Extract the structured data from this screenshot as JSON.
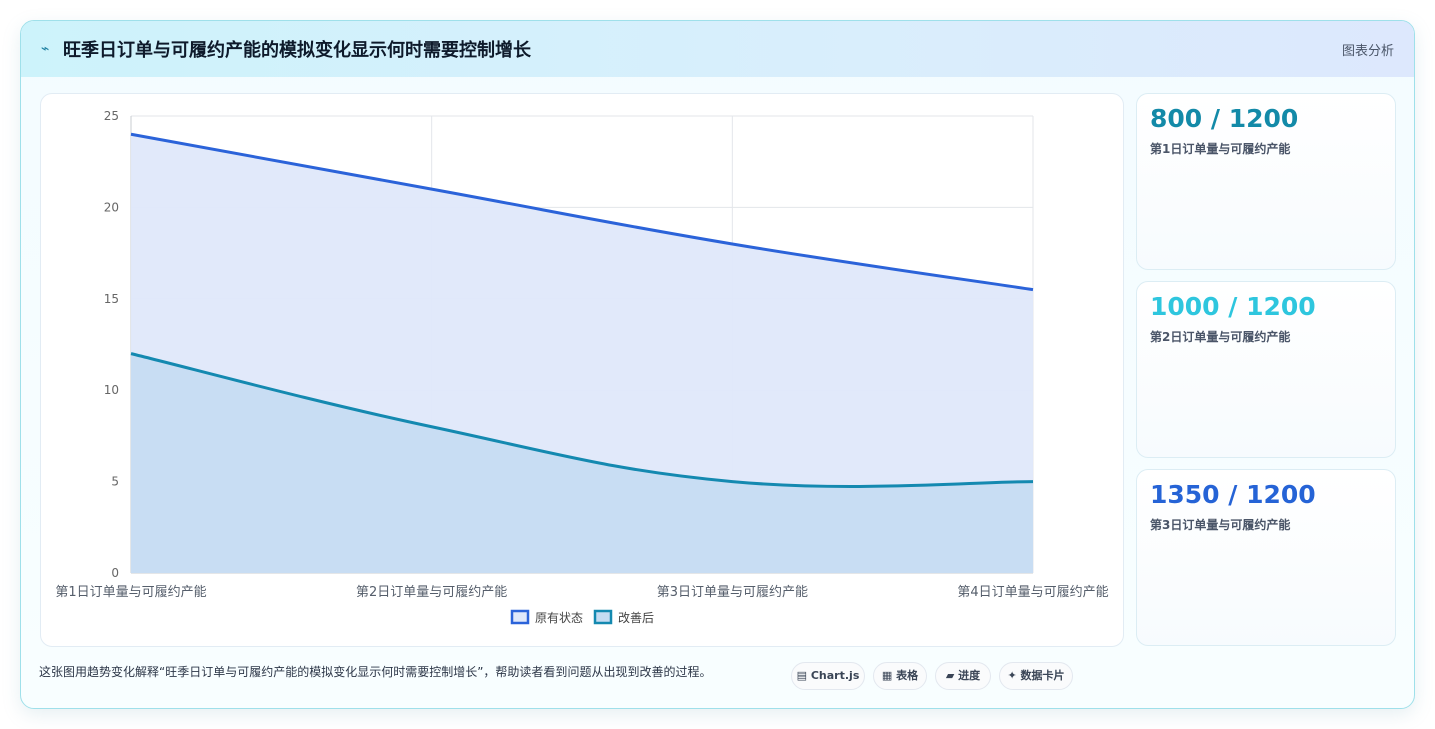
{
  "header": {
    "icon": "⌁",
    "title": "旺季日订单与可履约产能的模拟变化显示何时需要控制增长",
    "link_label": "图表分析"
  },
  "chart_data": {
    "type": "area",
    "categories": [
      "第1日订单量与可履约产能",
      "第2日订单量与可履约产能",
      "第3日订单量与可履约产能",
      "第4日订单量与可履约产能"
    ],
    "series": [
      {
        "name": "原有状态",
        "values": [
          24,
          21,
          18,
          15.5
        ],
        "color": "#2b63d9",
        "fill": "#dfe8fa"
      },
      {
        "name": "改善后",
        "values": [
          12,
          8,
          5,
          5
        ],
        "color": "#1489b0",
        "fill": "#c5dcf2"
      }
    ],
    "ylim": [
      0,
      25
    ],
    "yticks": [
      0,
      5,
      10,
      15,
      20,
      25
    ],
    "grid": true,
    "legend_position": "bottom"
  },
  "stats": [
    {
      "value": "800 / 1200",
      "label": "第1日订单量与可履约产能",
      "color": "#138aa8"
    },
    {
      "value": "1000 / 1200",
      "label": "第2日订单量与可履约产能",
      "color": "#2ec6de"
    },
    {
      "value": "1350 / 1200",
      "label": "第3日订单量与可履约产能",
      "color": "#2563d6"
    }
  ],
  "caption": "这张图用趋势变化解释“旺季日订单与可履约产能的模拟变化显示何时需要控制增长”，帮助读者看到问题从出现到改善的过程。",
  "chips": [
    {
      "icon": "▤",
      "label": "Chart.js"
    },
    {
      "icon": "▦",
      "label": "表格"
    },
    {
      "icon": "▰",
      "label": "进度"
    },
    {
      "icon": "✦",
      "label": "数据卡片"
    }
  ]
}
